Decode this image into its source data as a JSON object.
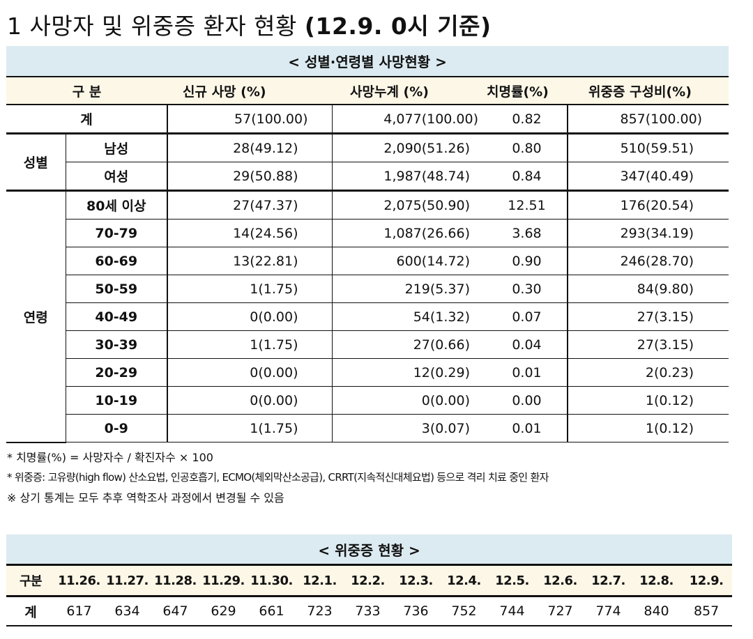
{
  "title": {
    "prefix": "1 사망자 및 위중증 환자 현황 ",
    "date": "(12.9. 0시 기준)"
  },
  "main_table": {
    "caption": "< 성별·연령별 사망현황 >",
    "headers": {
      "category": "구 분",
      "new_deaths": "신규 사망 (%)",
      "cumulative": "사망누계 (%)",
      "fatality": "치명률(%)",
      "critical": "위중증 구성비(%)"
    },
    "total": {
      "label": "계",
      "new": "57(100.00)",
      "cum": "4,077(100.00)",
      "cfr": "0.82",
      "crit": "857(100.00)"
    },
    "sex_group_label": "성별",
    "sex_rows": [
      {
        "label": "남성",
        "new": "28(49.12)",
        "cum": "2,090(51.26)",
        "cfr": "0.80",
        "crit": "510(59.51)"
      },
      {
        "label": "여성",
        "new": "29(50.88)",
        "cum": "1,987(48.74)",
        "cfr": "0.84",
        "crit": "347(40.49)"
      }
    ],
    "age_group_label": "연령",
    "age_rows": [
      {
        "label": "80세 이상",
        "new": "27(47.37)",
        "cum": "2,075(50.90)",
        "cfr": "12.51",
        "crit": "176(20.54)"
      },
      {
        "label": "70-79",
        "new": "14(24.56)",
        "cum": "1,087(26.66)",
        "cfr": "3.68",
        "crit": "293(34.19)"
      },
      {
        "label": "60-69",
        "new": "13(22.81)",
        "cum": "600(14.72)",
        "cfr": "0.90",
        "crit": "246(28.70)"
      },
      {
        "label": "50-59",
        "new": "1(1.75)",
        "cum": "219(5.37)",
        "cfr": "0.30",
        "crit": "84(9.80)"
      },
      {
        "label": "40-49",
        "new": "0(0.00)",
        "cum": "54(1.32)",
        "cfr": "0.07",
        "crit": "27(3.15)"
      },
      {
        "label": "30-39",
        "new": "1(1.75)",
        "cum": "27(0.66)",
        "cfr": "0.04",
        "crit": "27(3.15)"
      },
      {
        "label": "20-29",
        "new": "0(0.00)",
        "cum": "12(0.29)",
        "cfr": "0.01",
        "crit": "2(0.23)"
      },
      {
        "label": "10-19",
        "new": "0(0.00)",
        "cum": "0(0.00)",
        "cfr": "0.00",
        "crit": "1(0.12)"
      },
      {
        "label": "0-9",
        "new": "1(1.75)",
        "cum": "3(0.07)",
        "cfr": "0.01",
        "crit": "1(0.12)"
      }
    ]
  },
  "notes": [
    "* 치명률(%) = 사망자수 / 확진자수 × 100",
    "* 위중증: 고유량(high flow) 산소요법, 인공호흡기, ECMO(체외막산소공급), CRRT(지속적신대체요법) 등으로 격리 치료 중인 환자",
    "※ 상기 통계는 모두 추후 역학조사 과정에서 변경될 수 있음"
  ],
  "critical_table": {
    "caption": "< 위중증 현황 >",
    "row_header": "구분",
    "dates": [
      "11.26.",
      "11.27.",
      "11.28.",
      "11.29.",
      "11.30.",
      "12.1.",
      "12.2.",
      "12.3.",
      "12.4.",
      "12.5.",
      "12.6.",
      "12.7.",
      "12.8.",
      "12.9."
    ],
    "total_label": "계",
    "values": [
      "617",
      "634",
      "647",
      "629",
      "661",
      "723",
      "733",
      "736",
      "752",
      "744",
      "727",
      "774",
      "840",
      "857"
    ]
  }
}
